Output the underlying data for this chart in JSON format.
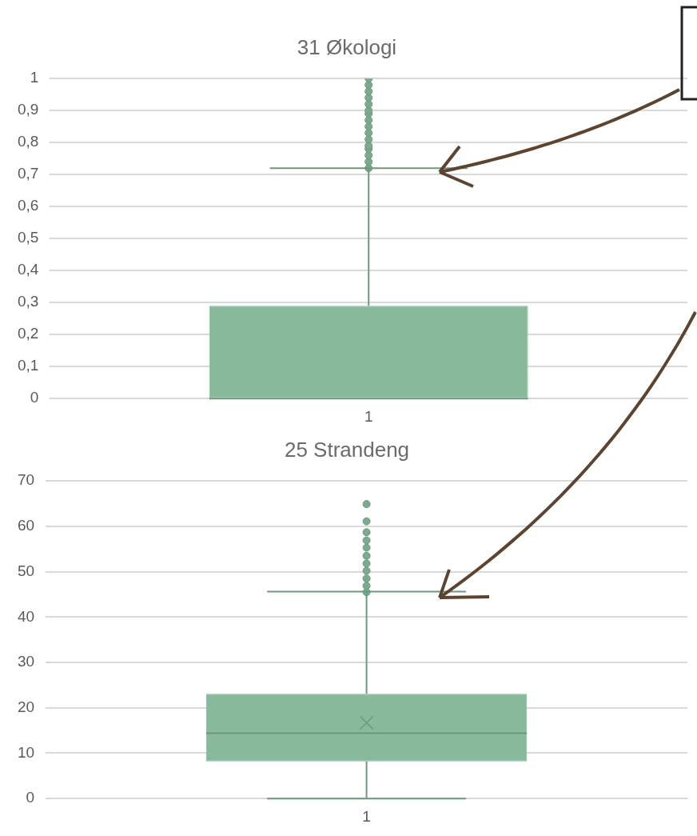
{
  "chart_data": [
    {
      "type": "box",
      "title": "31 Økologi",
      "categories": [
        "1"
      ],
      "color": "#87b99a",
      "boxes": [
        {
          "low": 0,
          "q1": 0,
          "median": 0,
          "q3": 0.29,
          "high": 0.72,
          "outliers": [
            0.72,
            0.74,
            0.76,
            0.78,
            0.79,
            0.81,
            0.83,
            0.85,
            0.87,
            0.89,
            0.9,
            0.92,
            0.94,
            0.96,
            0.98,
            1
          ]
        }
      ],
      "ylim": [
        0,
        1
      ],
      "yticks": [
        0,
        {
          "value": 0.1,
          "label": "0,1"
        },
        {
          "value": 0.2,
          "label": "0,2"
        },
        {
          "value": 0.3,
          "label": "0,3"
        },
        {
          "value": 0.4,
          "label": "0,4"
        },
        {
          "value": 0.5,
          "label": "0,5"
        },
        {
          "value": 0.6,
          "label": "0,6"
        },
        {
          "value": 0.7,
          "label": "0,7"
        },
        {
          "value": 0.8,
          "label": "0,8"
        },
        {
          "value": 0.9,
          "label": "0,9"
        },
        1
      ],
      "grid": "y"
    },
    {
      "type": "box",
      "title": "25 Strandeng",
      "categories": [
        "1"
      ],
      "color": "#87b99a",
      "boxes": [
        {
          "low": 0,
          "q1": 8.2,
          "median": 14.4,
          "q3": 23.1,
          "high": 45.6,
          "mean": 16.7,
          "outliers": [
            45.5,
            46.9,
            48.5,
            50.2,
            51.8,
            53.5,
            55.3,
            56.9,
            58.7,
            61.1,
            64.9
          ]
        }
      ],
      "ylim": [
        0,
        70
      ],
      "yticks": [
        0,
        10,
        20,
        30,
        40,
        50,
        60,
        70
      ],
      "grid": "y"
    }
  ]
}
